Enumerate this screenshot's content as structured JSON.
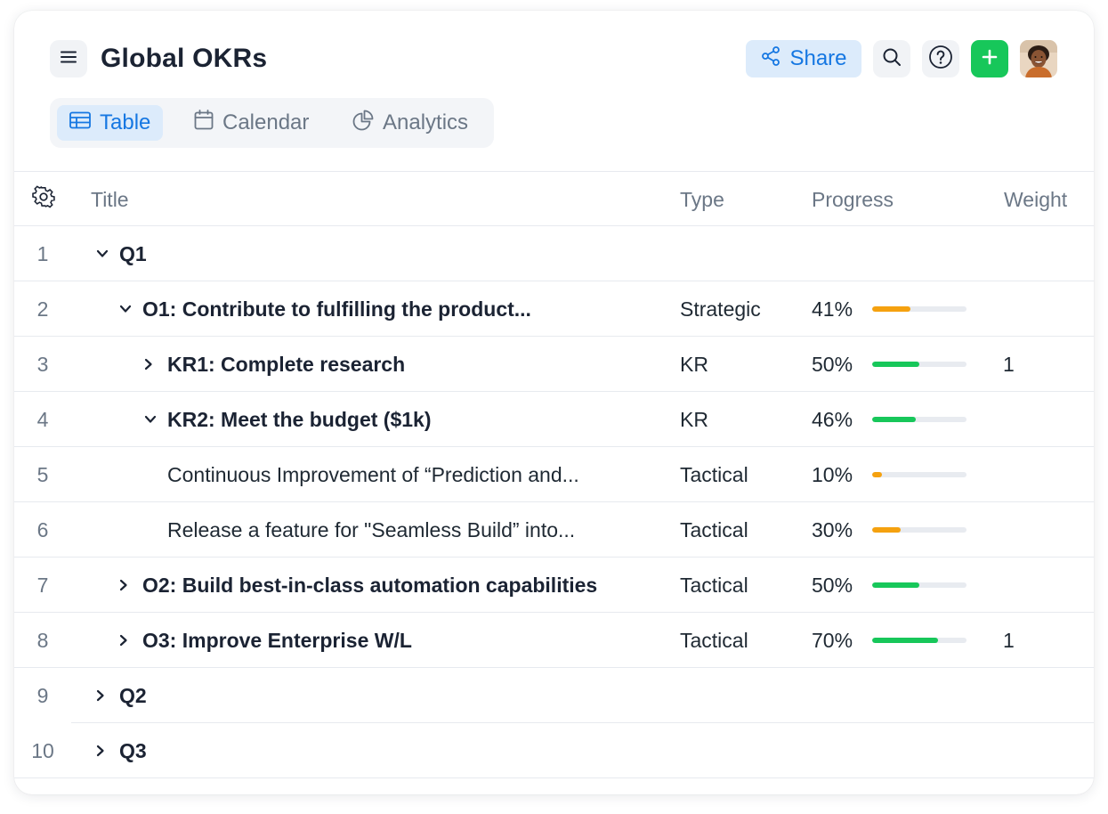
{
  "header": {
    "title": "Global OKRs",
    "share_label": "Share",
    "icons": {
      "menu": "hamburger-menu-icon",
      "share": "share-icon",
      "search": "search-icon",
      "help": "help-icon",
      "add": "plus-icon"
    },
    "colors": {
      "accent": "#1577e2",
      "add_button": "#17c75a"
    }
  },
  "views": {
    "tabs": [
      {
        "label": "Table",
        "icon": "table-icon",
        "active": true
      },
      {
        "label": "Calendar",
        "icon": "calendar-icon",
        "active": false
      },
      {
        "label": "Analytics",
        "icon": "pie-chart-icon",
        "active": false
      }
    ]
  },
  "table": {
    "settings_icon": "gear-icon",
    "columns": [
      "Title",
      "Type",
      "Progress",
      "Weight"
    ],
    "rows": [
      {
        "num": "1",
        "title": "Q1",
        "type": "",
        "progress": null,
        "progress_label": "",
        "weight": "",
        "caret": "down",
        "bold": true
      },
      {
        "num": "2",
        "title": "O1: Contribute to fulfilling the product...",
        "type": "Strategic",
        "progress": 41,
        "progress_label": "41%",
        "weight": "",
        "caret": "down",
        "bold": true
      },
      {
        "num": "3",
        "title": "KR1: Complete research",
        "type": "KR",
        "progress": 50,
        "progress_label": "50%",
        "weight": "1",
        "caret": "right",
        "bold": true
      },
      {
        "num": "4",
        "title": "KR2: Meet the budget ($1k)",
        "type": "KR",
        "progress": 46,
        "progress_label": "46%",
        "weight": "",
        "caret": "down",
        "bold": true
      },
      {
        "num": "5",
        "title": "Continuous Improvement of “Prediction and...",
        "type": "Tactical",
        "progress": 10,
        "progress_label": "10%",
        "weight": "",
        "caret": "none",
        "bold": false
      },
      {
        "num": "6",
        "title": "Release a feature for \"Seamless Build” into...",
        "type": "Tactical",
        "progress": 30,
        "progress_label": "30%",
        "weight": "",
        "caret": "none",
        "bold": false
      },
      {
        "num": "7",
        "title": "O2: Build best-in-class automation capabilities",
        "type": "Tactical",
        "progress": 50,
        "progress_label": "50%",
        "weight": "",
        "caret": "right",
        "bold": true
      },
      {
        "num": "8",
        "title": "O3: Improve Enterprise W/L",
        "type": "Tactical",
        "progress": 70,
        "progress_label": "70%",
        "weight": "1",
        "caret": "right",
        "bold": true
      },
      {
        "num": "9",
        "title": "Q2",
        "type": "",
        "progress": null,
        "progress_label": "",
        "weight": "",
        "caret": "right",
        "bold": true
      },
      {
        "num": "10",
        "title": "Q3",
        "type": "",
        "progress": null,
        "progress_label": "",
        "weight": "",
        "caret": "right",
        "bold": true
      }
    ],
    "progress_colors": {
      "low": "#f5a10f",
      "high": "#17c75a",
      "track": "#e8ebf0"
    }
  }
}
